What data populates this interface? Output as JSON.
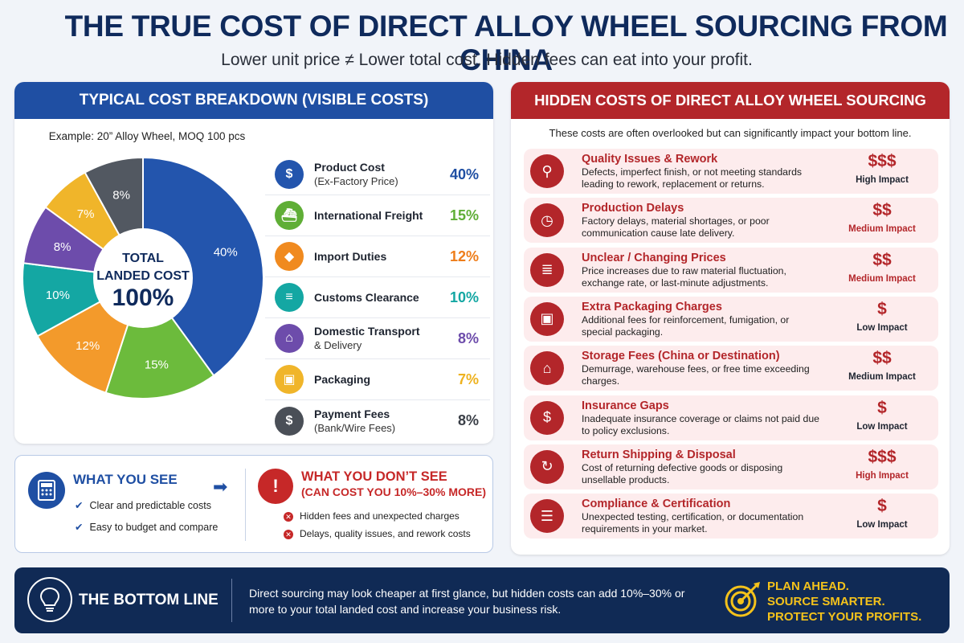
{
  "header": {
    "title": "THE TRUE COST OF DIRECT ALLOY WHEEL SOURCING FROM CHINA",
    "subtitle": "Lower unit price ≠ Lower total cost. Hidden fees can eat into your profit."
  },
  "left_panel": {
    "title": "TYPICAL COST BREAKDOWN (VISIBLE COSTS)",
    "example": "Example: 20” Alloy Wheel, MOQ 100 pcs",
    "center_line1": "TOTAL",
    "center_line2": "LANDED COST",
    "center_value": "100%"
  },
  "chart_data": {
    "type": "pie",
    "title": "TYPICAL COST BREAKDOWN (VISIBLE COSTS)",
    "total_label": "TOTAL LANDED COST 100%",
    "categories": [
      "Product Cost (Ex-Factory Price)",
      "International Freight",
      "Import Duties",
      "Customs Clearance",
      "Domestic Transport & Delivery",
      "Packaging",
      "Payment Fees (Bank/Wire Fees)"
    ],
    "values": [
      40,
      15,
      12,
      10,
      8,
      7,
      8
    ],
    "slice_labels": [
      "40%",
      "15%",
      "12%",
      "10%",
      "8%",
      "7%",
      "8%"
    ],
    "colors": [
      "#2355ad",
      "#6cbb3c",
      "#f39a2b",
      "#14a7a3",
      "#6d4cab",
      "#f0b52a",
      "#525861"
    ],
    "legend_items": [
      {
        "label": "Product Cost",
        "sub": "(Ex-Factory Price)",
        "pct": "40%",
        "color": "#2355ad",
        "pct_color": "#1f4fa3",
        "icon": "price-tag-icon",
        "glyph": "$"
      },
      {
        "label": "International Freight",
        "sub": "",
        "pct": "15%",
        "color": "#5fae36",
        "pct_color": "#5fae36",
        "icon": "ship-icon",
        "glyph": "⛴"
      },
      {
        "label": "Import Duties",
        "sub": "",
        "pct": "12%",
        "color": "#f08a1f",
        "pct_color": "#ee7d1a",
        "icon": "shield-icon",
        "glyph": "◆"
      },
      {
        "label": "Customs Clearance",
        "sub": "",
        "pct": "10%",
        "color": "#14a7a3",
        "pct_color": "#14a7a3",
        "icon": "document-icon",
        "glyph": "≡"
      },
      {
        "label": "Domestic Transport",
        "sub": "& Delivery",
        "pct": "8%",
        "color": "#6d4cab",
        "pct_color": "#6d4cab",
        "icon": "warehouse-icon",
        "glyph": "⌂"
      },
      {
        "label": "Packaging",
        "sub": "",
        "pct": "7%",
        "color": "#f0b52a",
        "pct_color": "#eeb21f",
        "icon": "box-icon",
        "glyph": "▣"
      },
      {
        "label": "Payment Fees",
        "sub": "(Bank/Wire Fees)",
        "pct": "8%",
        "color": "#4a4f57",
        "pct_color": "#3a3f47",
        "icon": "coin-icon",
        "glyph": "$"
      }
    ]
  },
  "see_box": {
    "see_title": "WHAT YOU SEE",
    "see_items": [
      "Clear and predictable costs",
      "Easy to budget and compare"
    ],
    "dont_title": "WHAT YOU DON’T SEE",
    "dont_sub": "(CAN COST YOU 10%–30% MORE)",
    "dont_items": [
      "Hidden fees and unexpected charges",
      "Delays, quality issues, and rework costs"
    ]
  },
  "right_panel": {
    "title": "HIDDEN COSTS OF DIRECT ALLOY WHEEL SOURCING",
    "note": "These costs are often overlooked but can significantly impact your bottom line.",
    "items": [
      {
        "title": "Quality Issues & Rework",
        "desc": "Defects, imperfect finish, or not meeting standards leading to rework, replacement or returns.",
        "dollars": "$$$",
        "impact": "High Impact",
        "icon": "magnifier-icon",
        "glyph": "⚲",
        "impact_color": "#1e2430"
      },
      {
        "title": "Production Delays",
        "desc": "Factory delays, material shortages, or poor communication cause late delivery.",
        "dollars": "$$",
        "impact": "Medium Impact",
        "icon": "clock-icon",
        "glyph": "◷",
        "impact_color": "#b3262a"
      },
      {
        "title": "Unclear / Changing Prices",
        "desc": "Price increases due to raw material fluctuation, exchange rate, or last-minute adjustments.",
        "dollars": "$$",
        "impact": "Medium Impact",
        "icon": "invoice-icon",
        "glyph": "≣",
        "impact_color": "#b3262a"
      },
      {
        "title": "Extra Packaging Charges",
        "desc": "Additional fees for reinforcement, fumigation, or special packaging.",
        "dollars": "$",
        "impact": "Low Impact",
        "icon": "package-icon",
        "glyph": "▣",
        "impact_color": "#1e2430"
      },
      {
        "title": "Storage Fees (China or Destination)",
        "desc": "Demurrage, warehouse fees, or free time exceeding charges.",
        "dollars": "$$",
        "impact": "Medium Impact",
        "icon": "warehouse-icon",
        "glyph": "⌂",
        "impact_color": "#1e2430"
      },
      {
        "title": "Insurance Gaps",
        "desc": "Inadequate insurance coverage or claims not paid due to policy exclusions.",
        "dollars": "$",
        "impact": "Low Impact",
        "icon": "shield-dollar-icon",
        "glyph": "$",
        "impact_color": "#1e2430"
      },
      {
        "title": "Return Shipping & Disposal",
        "desc": "Cost of returning defective goods or disposing unsellable products.",
        "dollars": "$$$",
        "impact": "High Impact",
        "icon": "return-arrows-icon",
        "glyph": "↻",
        "impact_color": "#b3262a"
      },
      {
        "title": "Compliance & Certification",
        "desc": "Unexpected testing, certification, or documentation requirements in your market.",
        "dollars": "$",
        "impact": "Low Impact",
        "icon": "certificate-icon",
        "glyph": "☰",
        "impact_color": "#1e2430"
      }
    ]
  },
  "bottom": {
    "title": "THE BOTTOM LINE",
    "text": "Direct sourcing may look cheaper at first glance, but hidden costs can add 10%–30% or more to your total landed cost and increase your business risk.",
    "plan_lines": [
      "PLAN AHEAD.",
      "SOURCE SMARTER.",
      "PROTECT YOUR PROFITS."
    ]
  }
}
